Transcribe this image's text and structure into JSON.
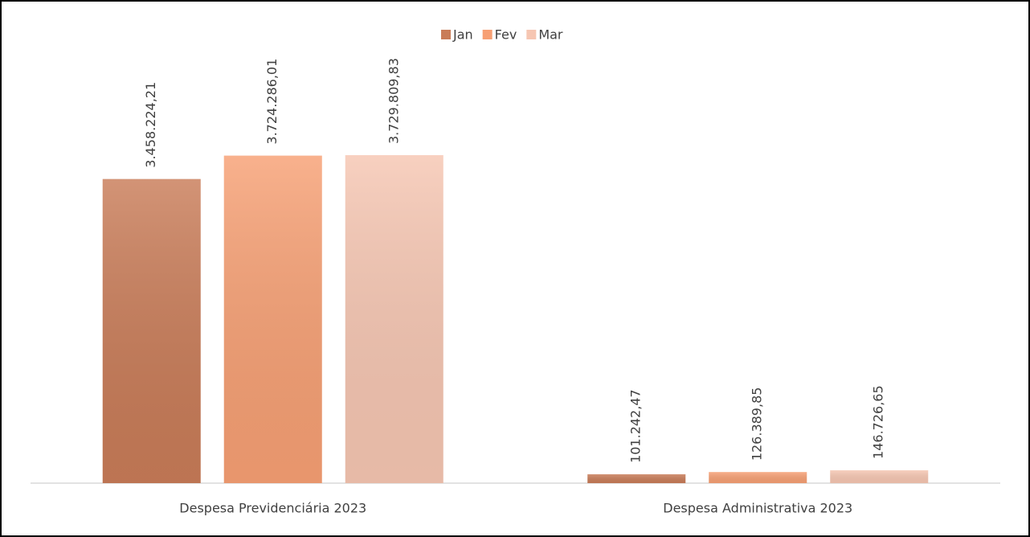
{
  "chart_data": {
    "type": "bar",
    "categories": [
      "Despesa Previdenciária 2023",
      "Despesa Administrativa 2023"
    ],
    "series": [
      {
        "name": "Jan",
        "color": "#c97c58",
        "values": [
          3458224.21,
          101242.47
        ],
        "value_labels": [
          "3.458.224,21",
          "101.242,47"
        ]
      },
      {
        "name": "Fev",
        "color": "#f7a074",
        "values": [
          3724286.01,
          126389.85
        ],
        "value_labels": [
          "3.724.286,01",
          "126.389,85"
        ]
      },
      {
        "name": "Mar",
        "color": "#f6c6b2",
        "values": [
          3729809.83,
          146726.65
        ],
        "value_labels": [
          "3.729.809,83",
          "146.726,65"
        ]
      }
    ],
    "legend": "top"
  }
}
